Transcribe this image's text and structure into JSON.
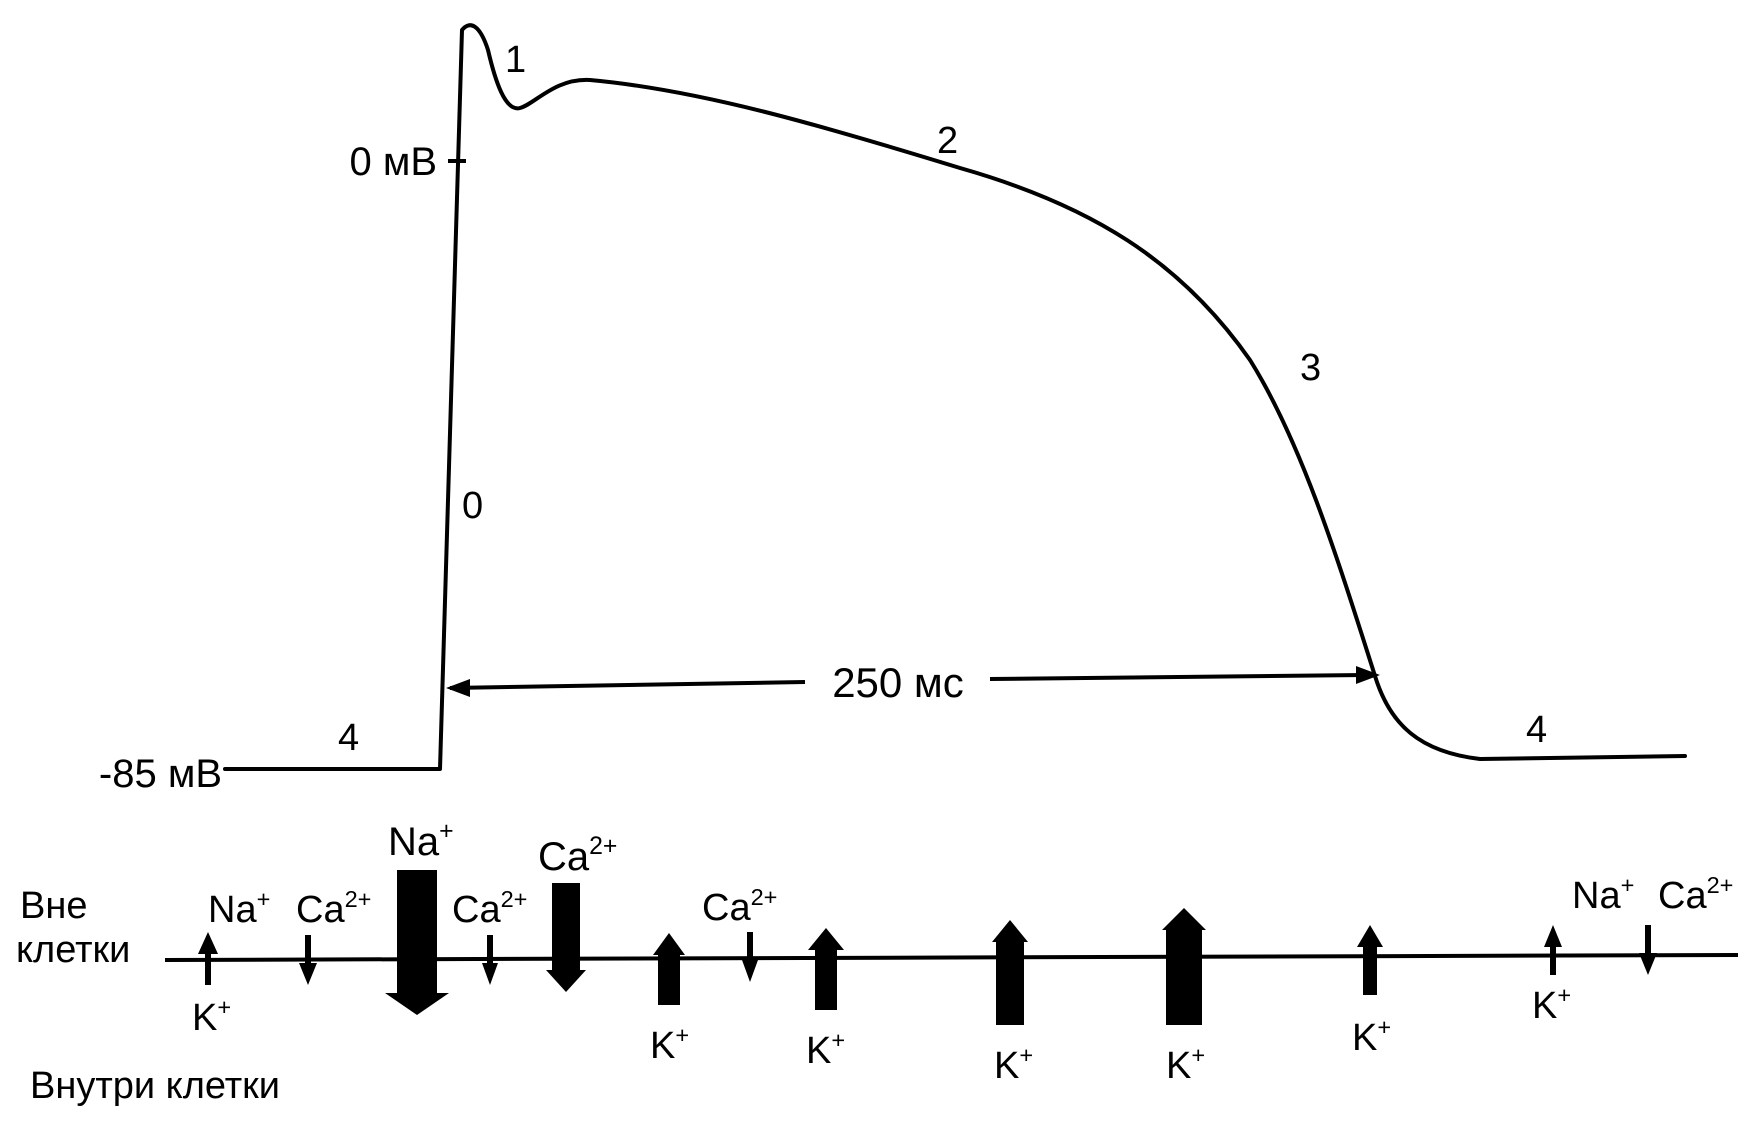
{
  "axis_labels": {
    "zero": "0 мВ",
    "rest": "-85 мВ"
  },
  "phases": {
    "p0": "0",
    "p1": "1",
    "p2": "2",
    "p3": "3",
    "p4_left": "4",
    "p4_right": "4"
  },
  "duration": "250 мс",
  "membrane": {
    "outside": [
      "Вне",
      "клетки"
    ],
    "inside": "Внутри клетки"
  },
  "ions": {
    "na": "Na",
    "na_sup": "+",
    "ca": "Ca",
    "ca_sup": "2+",
    "k": "K",
    "k_sup": "+"
  }
}
